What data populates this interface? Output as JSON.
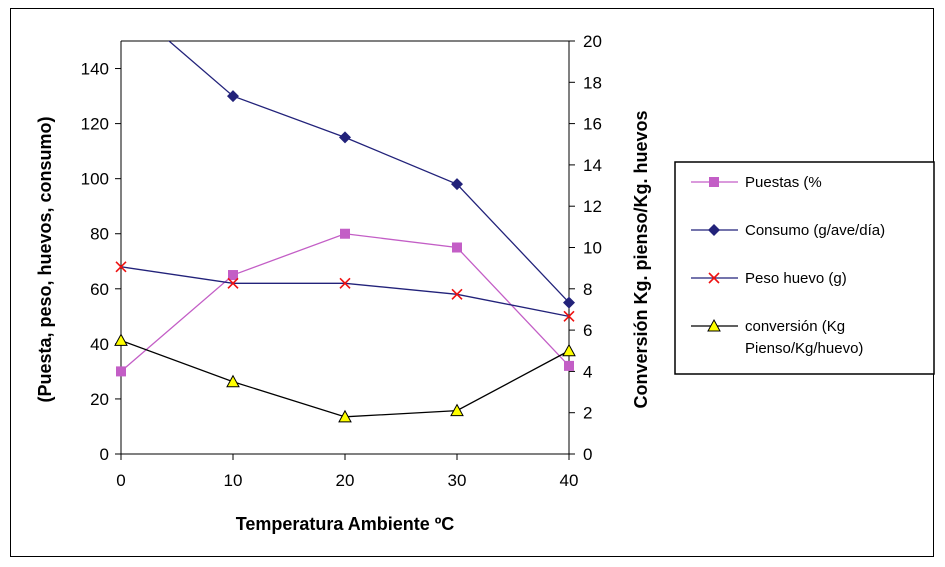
{
  "chart_data": {
    "type": "line",
    "title": "",
    "xlabel": "Temperatura Ambiente ºC",
    "ylabel_left": "(Puesta, peso, huevos, consumo)",
    "ylabel_right": "Conversión Kg. pienso/Kg. huevos",
    "x": [
      0,
      10,
      20,
      30,
      40
    ],
    "x_ticks": [
      "0",
      "10",
      "20",
      "30",
      "40"
    ],
    "xlim": [
      0,
      40
    ],
    "ylim_left": [
      0,
      150
    ],
    "y_ticks_left": [
      "0",
      "20",
      "40",
      "60",
      "80",
      "100",
      "120",
      "140"
    ],
    "ylim_right": [
      0,
      20
    ],
    "y_ticks_right": [
      "0",
      "2",
      "4",
      "6",
      "8",
      "10",
      "12",
      "14",
      "16",
      "18",
      "20"
    ],
    "grid": false,
    "legend_position": "right",
    "series": [
      {
        "name": "Puestas (%",
        "axis": "left",
        "color": "#c35ec6",
        "marker": "square",
        "values": [
          30,
          65,
          80,
          75,
          32
        ]
      },
      {
        "name": "Consumo (g/ave/día)",
        "axis": "left",
        "color": "#22227a",
        "marker": "diamond",
        "values": [
          165,
          130,
          115,
          98,
          55
        ]
      },
      {
        "name": "Peso huevo (g)",
        "axis": "left",
        "color": "#22227a",
        "marker_color": "#ee1111",
        "marker": "x",
        "values": [
          68,
          62,
          62,
          58,
          50
        ]
      },
      {
        "name": "conversión (Kg\nPienso/Kg/huevo)",
        "legend_lines": [
          "conversión (Kg",
          "Pienso/Kg/huevo)"
        ],
        "axis": "right",
        "color": "#000000",
        "marker_color": "#ffff00",
        "marker": "triangle",
        "values": [
          5.5,
          3.5,
          1.8,
          2.1,
          5.0
        ]
      }
    ]
  }
}
